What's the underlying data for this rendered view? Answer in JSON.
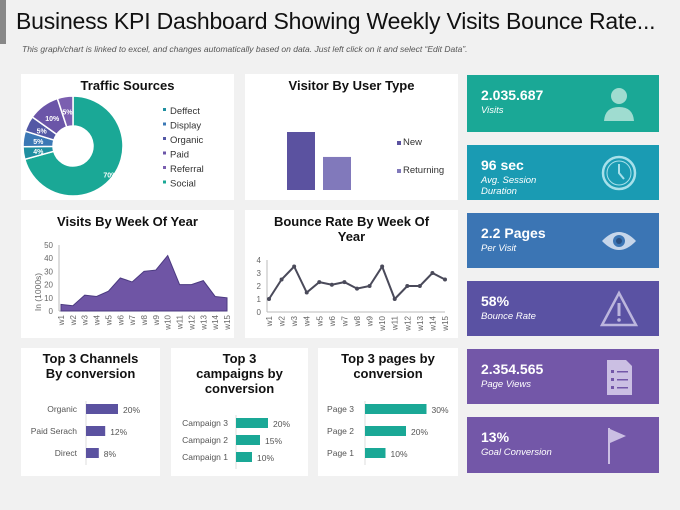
{
  "header": {
    "title": "Business KPI Dashboard Showing Weekly Visits Bounce Rate...",
    "subtitle": "This graph/chart is linked to excel, and changes automatically  based on data. Just left click on it and select “Edit Data”."
  },
  "chart_data": [
    {
      "type": "pie",
      "title": "Traffic Sources",
      "legend": [
        "Deffect",
        "Display",
        "Organic",
        "Paid",
        "Referral",
        "Social"
      ],
      "values": [
        4,
        5,
        5,
        10,
        5,
        70
      ],
      "labels": [
        "4%",
        "5%",
        "5%",
        "10%",
        "5%",
        "70%"
      ],
      "colors": [
        "#1f8fa0",
        "#3b78b5",
        "#5358a5",
        "#6b55a8",
        "#7b5fb0",
        "#1aa896"
      ],
      "legend_placement": "right"
    },
    {
      "type": "bar",
      "title": "Visitor By User Type",
      "categories": [
        "New",
        "Returning"
      ],
      "values": [
        100,
        57
      ],
      "colors": [
        "#5b52a0",
        "#8179bb"
      ],
      "legend_placement": "right"
    },
    {
      "type": "area",
      "title": "Visits By Week Of Year",
      "ylabel": "In (1000s)",
      "categories": [
        "w1",
        "w2",
        "w3",
        "w4",
        "w5",
        "w6",
        "w7",
        "w8",
        "w9",
        "w10",
        "w11",
        "w12",
        "w13",
        "w14",
        "w15"
      ],
      "values": [
        5,
        4,
        12,
        11,
        15,
        25,
        22,
        30,
        31,
        42,
        20,
        20,
        23,
        11,
        10
      ],
      "ylim": [
        0,
        50
      ],
      "yticks": [
        "0",
        "10",
        "20",
        "30",
        "40",
        "50"
      ],
      "color": "#6f55a5"
    },
    {
      "type": "line",
      "title": "Bounce Rate By Week Of Year",
      "categories": [
        "w1",
        "w2",
        "w3",
        "w4",
        "w5",
        "w6",
        "w7",
        "w8",
        "w9",
        "w10",
        "w11",
        "w12",
        "w13",
        "w14",
        "w15"
      ],
      "values": [
        1,
        2.5,
        3.5,
        1.5,
        2.3,
        2.1,
        2.3,
        1.8,
        2,
        3.5,
        1,
        2,
        2,
        3,
        2.5
      ],
      "ylim": [
        0,
        4
      ],
      "yticks": [
        "0",
        "1",
        "2",
        "3",
        "4"
      ],
      "color": "#4a4a5a"
    },
    {
      "type": "bar",
      "orientation": "horizontal",
      "title": "Top 3 Channels By conversion",
      "categories": [
        "Organic",
        "Paid Serach",
        "Direct"
      ],
      "values": [
        20,
        12,
        8
      ],
      "labels": [
        "20%",
        "12%",
        "8%"
      ],
      "color": "#5b52a0"
    },
    {
      "type": "bar",
      "orientation": "horizontal",
      "title": "Top 3 campaigns by conversion",
      "categories": [
        "Campaign 3",
        "Campaign 2",
        "Campaign 1"
      ],
      "values": [
        20,
        15,
        10
      ],
      "labels": [
        "20%",
        "15%",
        "10%"
      ],
      "color": "#1aa896"
    },
    {
      "type": "bar",
      "orientation": "horizontal",
      "title": "Top 3 pages by conversion",
      "categories": [
        "Page 3",
        "Page 2",
        "Page 1"
      ],
      "values": [
        30,
        20,
        10
      ],
      "labels": [
        "30%",
        "20%",
        "10%"
      ],
      "color": "#1aa896"
    }
  ],
  "kpis": [
    {
      "value": "2.035.687",
      "label": "Visits",
      "icon": "user-icon",
      "color": "#1aa896"
    },
    {
      "value": "96 sec",
      "label": "Avg. Session Duration",
      "icon": "clock-icon",
      "color": "#1a9bb3"
    },
    {
      "value": "2.2 Pages",
      "label": "Per Visit",
      "icon": "eye-icon",
      "color": "#3b75b4"
    },
    {
      "value": "58%",
      "label": "Bounce Rate",
      "icon": "warning-icon",
      "color": "#5a52a3"
    },
    {
      "value": "2.354.565",
      "label": "Page Views",
      "icon": "document-icon",
      "color": "#7357a8"
    },
    {
      "value": "13%",
      "label": "Goal Conversion",
      "icon": "flag-icon",
      "color": "#7357a8"
    }
  ]
}
